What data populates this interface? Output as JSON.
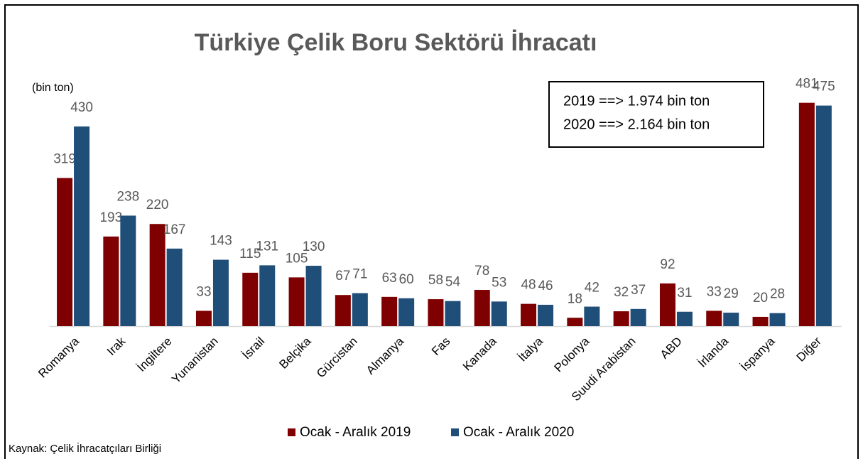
{
  "chart_data": {
    "type": "bar",
    "title": "Türkiye Çelik Boru Sektörü İhracatı",
    "unit_label": "(bin ton)",
    "annotations": [
      "2019 ==> 1.974 bin ton",
      "2020 ==> 2.164 bin ton"
    ],
    "source": "Kaynak: Çelik İhracatçıları Birliği",
    "categories": [
      "Romanya",
      "Irak",
      "İngiltere",
      "Yunanistan",
      "İsrail",
      "Belçika",
      "Gürcistan",
      "Almanya",
      "Fas",
      "Kanada",
      "İtalya",
      "Polonya",
      "Suudi Arabistan",
      "ABD",
      "İrlanda",
      "İspanya",
      "Diğer"
    ],
    "series": [
      {
        "name": "Ocak - Aralık 2019",
        "color": "#7f0000",
        "values": [
          319,
          193,
          220,
          33,
          115,
          105,
          67,
          63,
          58,
          78,
          48,
          18,
          32,
          92,
          33,
          20,
          481
        ]
      },
      {
        "name": "Ocak - Aralık 2020",
        "color": "#1f4e79",
        "values": [
          430,
          238,
          167,
          143,
          131,
          130,
          71,
          60,
          54,
          53,
          46,
          42,
          37,
          31,
          29,
          28,
          475
        ]
      }
    ]
  }
}
